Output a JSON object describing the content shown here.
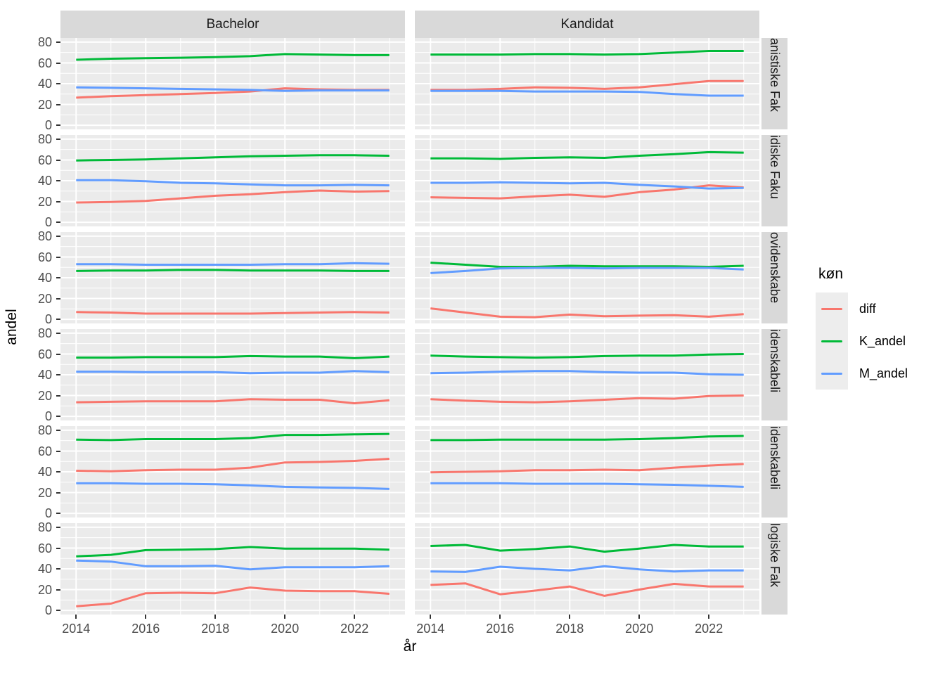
{
  "legend": {
    "title": "køn",
    "items": [
      {
        "label": "diff",
        "color": "#F8766D"
      },
      {
        "label": "K_andel",
        "color": "#00BA38"
      },
      {
        "label": "M_andel",
        "color": "#619CFF"
      }
    ]
  },
  "chart_data": {
    "type": "line",
    "x_label": "år",
    "y_label": "andel",
    "x": [
      2014,
      2015,
      2016,
      2017,
      2018,
      2019,
      2020,
      2021,
      2022,
      2023
    ],
    "x_ticks": [
      2014,
      2016,
      2018,
      2020,
      2022
    ],
    "y_ticks": [
      0,
      20,
      40,
      60,
      80
    ],
    "x_minor_ticks": [
      2015,
      2017,
      2019,
      2021,
      2023
    ],
    "y_minor_ticks": [
      10,
      30,
      50,
      70
    ],
    "xlim": [
      2013.55,
      2023.45
    ],
    "ylim": [
      -4,
      84
    ],
    "grid": true,
    "legend_position": "right",
    "col_facets": [
      "Bachelor",
      "Kandidat"
    ],
    "series_order": [
      "diff",
      "K_andel",
      "M_andel"
    ],
    "series_colors": {
      "diff": "#F8766D",
      "K_andel": "#00BA38",
      "M_andel": "#619CFF"
    },
    "row_facets": [
      {
        "label": "anistiske Fak",
        "panels": {
          "Bachelor": {
            "diff": [
              26.5,
              28,
              29,
              30,
              31,
              32.5,
              35.5,
              34.5,
              34,
              34
            ],
            "K_andel": [
              63,
              64,
              64.5,
              65,
              65.5,
              66.5,
              68.5,
              68,
              67.5,
              67.5
            ],
            "M_andel": [
              36.5,
              36,
              35.5,
              35,
              34.5,
              34,
              33,
              33.5,
              33.5,
              33.5
            ]
          },
          "Kandidat": {
            "diff": [
              34,
              34,
              35,
              36.5,
              36,
              35,
              36.5,
              39.5,
              42.5,
              42.5
            ],
            "K_andel": [
              68,
              68,
              68,
              68.5,
              68.5,
              68,
              68.5,
              70,
              71.5,
              71.5
            ],
            "M_andel": [
              33,
              33,
              33,
              32.5,
              32.5,
              32.5,
              32,
              30,
              28.5,
              28.5
            ]
          }
        }
      },
      {
        "label": "idiske Faku",
        "panels": {
          "Bachelor": {
            "diff": [
              19,
              19.5,
              20.5,
              23,
              25.5,
              27,
              29,
              30.5,
              29.5,
              30
            ],
            "K_andel": [
              59.5,
              60,
              60.5,
              61.5,
              62.5,
              63.5,
              64,
              64.5,
              64.5,
              64
            ],
            "M_andel": [
              40.5,
              40.5,
              39.5,
              38,
              37.5,
              36.5,
              35.5,
              35.5,
              36,
              35.5
            ]
          },
          "Kandidat": {
            "diff": [
              24,
              23.5,
              23,
              25,
              26.5,
              24.5,
              29,
              31.5,
              35.5,
              33.5
            ],
            "K_andel": [
              61.5,
              61.5,
              61,
              62,
              62.5,
              62,
              64,
              65.5,
              67.5,
              67
            ],
            "M_andel": [
              38,
              38,
              38.5,
              38,
              37.5,
              38,
              36,
              34.5,
              32.5,
              33
            ]
          }
        }
      },
      {
        "label": "ovidenskabe",
        "panels": {
          "Bachelor": {
            "diff": [
              7,
              6.5,
              5.5,
              5.5,
              5.5,
              5.5,
              6,
              6.5,
              7,
              6.5
            ],
            "K_andel": [
              46.5,
              47,
              47,
              47.5,
              47.5,
              47,
              47,
              47,
              46.5,
              46.5
            ],
            "M_andel": [
              53,
              53,
              52.5,
              52.5,
              52.5,
              52.5,
              53,
              53,
              54,
              53.5
            ]
          },
          "Kandidat": {
            "diff": [
              10.5,
              6.5,
              2.5,
              2,
              4.5,
              3,
              3.5,
              4,
              2.5,
              5
            ],
            "K_andel": [
              54.5,
              52.5,
              50.5,
              50.5,
              51.5,
              51,
              51,
              51,
              50.5,
              51.5
            ],
            "M_andel": [
              44.5,
              46.5,
              49,
              49.5,
              49.5,
              49,
              49.5,
              49.5,
              49.5,
              48
            ]
          }
        }
      },
      {
        "label": "idenskabeli",
        "panels": {
          "Bachelor": {
            "diff": [
              13.5,
              14,
              14.5,
              14.5,
              14.5,
              16.5,
              16,
              16,
              12.5,
              15.5
            ],
            "K_andel": [
              56.5,
              56.5,
              57,
              57,
              57,
              58,
              57.5,
              57.5,
              56,
              57.5
            ],
            "M_andel": [
              43,
              43,
              42.5,
              42.5,
              42.5,
              41.5,
              42,
              42,
              43.5,
              42.5
            ]
          },
          "Kandidat": {
            "diff": [
              16.5,
              15,
              14,
              13.5,
              14.5,
              16,
              17.5,
              17,
              19.5,
              20
            ],
            "K_andel": [
              58.5,
              57.5,
              57,
              56.5,
              57,
              58,
              58.5,
              58.5,
              59.5,
              60
            ],
            "M_andel": [
              41.5,
              42,
              43,
              43.5,
              43.5,
              42.5,
              42,
              42,
              40.5,
              40
            ]
          }
        }
      },
      {
        "label": "idenskabeli",
        "panels": {
          "Bachelor": {
            "diff": [
              41,
              40.5,
              41.5,
              42,
              42,
              44,
              49,
              49.5,
              50.5,
              52.5
            ],
            "K_andel": [
              71,
              70.5,
              71.5,
              71.5,
              71.5,
              72.5,
              75.5,
              75.5,
              76,
              76.5
            ],
            "M_andel": [
              29,
              29,
              28.5,
              28.5,
              28,
              27,
              25.5,
              25,
              24.5,
              23.5
            ]
          },
          "Kandidat": {
            "diff": [
              39.5,
              40,
              40.5,
              41.5,
              41.5,
              42,
              41.5,
              44,
              46,
              47.5
            ],
            "K_andel": [
              70.5,
              70.5,
              71,
              71,
              71,
              71,
              71.5,
              72.5,
              74,
              74.5
            ],
            "M_andel": [
              29,
              29,
              29,
              28.5,
              28.5,
              28.5,
              28,
              27.5,
              26.5,
              25.5
            ]
          }
        }
      },
      {
        "label": "logiske Fak",
        "panels": {
          "Bachelor": {
            "diff": [
              4,
              6.5,
              16.5,
              17,
              16.5,
              22,
              19,
              18.5,
              18.5,
              16
            ],
            "K_andel": [
              52,
              53.5,
              58,
              58.5,
              59,
              61,
              59.5,
              59.5,
              59.5,
              58.5
            ],
            "M_andel": [
              48,
              47,
              42.5,
              42.5,
              43,
              39.5,
              41.5,
              41.5,
              41.5,
              42.5
            ]
          },
          "Kandidat": {
            "diff": [
              24.5,
              26,
              15.5,
              19,
              23,
              14,
              20,
              25.5,
              23,
              23
            ],
            "K_andel": [
              62,
              63,
              57.5,
              59,
              61.5,
              56.5,
              59.5,
              63,
              61.5,
              61.5
            ],
            "M_andel": [
              37.5,
              37,
              42,
              40,
              38.5,
              42.5,
              39.5,
              37.5,
              38.5,
              38.5
            ]
          }
        }
      }
    ]
  }
}
